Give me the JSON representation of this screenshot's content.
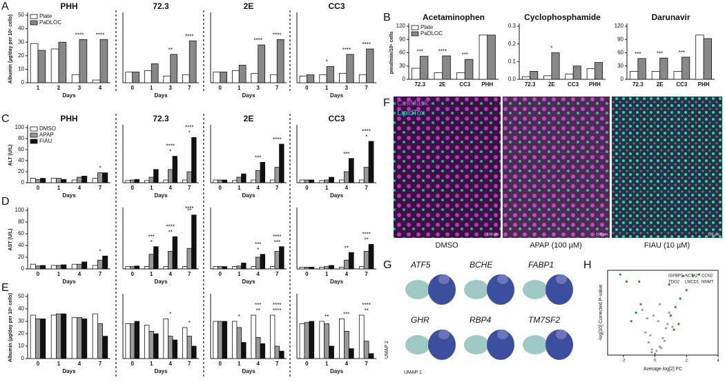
{
  "chart_data": [
    {
      "type": "bar",
      "panel": "A",
      "title": "PHH",
      "ylabel": "Albumin (µg/day per 10⁶ cells)",
      "xlabel": "Days",
      "legend": "upper left",
      "categories": [
        "1",
        "2",
        "3",
        "4"
      ],
      "ylim": [
        0,
        50
      ],
      "yticks": [
        0,
        10,
        20,
        30,
        40,
        50
      ],
      "series": [
        {
          "name": "Plate",
          "color": "#ffffff",
          "values": [
            29,
            25,
            6,
            2
          ]
        },
        {
          "name": "PaDLOC",
          "color": "#888888",
          "values": [
            24,
            30,
            32,
            32
          ]
        }
      ],
      "annotations": [
        {
          "category": "3",
          "text": "****"
        },
        {
          "category": "4",
          "text": "****"
        }
      ]
    },
    {
      "type": "bar",
      "title": "72.3",
      "xlabel": "Days",
      "categories": [
        "0",
        "1",
        "3",
        "7"
      ],
      "ylim": [
        0,
        50
      ],
      "series": [
        {
          "color": "#ffffff",
          "values": [
            8,
            9,
            5,
            6
          ]
        },
        {
          "color": "#888888",
          "values": [
            8,
            14,
            21,
            31
          ]
        }
      ],
      "annotations": [
        {
          "category": "3",
          "text": "**"
        },
        {
          "category": "7",
          "text": "****"
        }
      ]
    },
    {
      "type": "bar",
      "title": "2E",
      "xlabel": "Days",
      "categories": [
        "0",
        "1",
        "3",
        "7"
      ],
      "ylim": [
        0,
        50
      ],
      "series": [
        {
          "color": "#ffffff",
          "values": [
            8,
            9,
            7,
            6
          ]
        },
        {
          "color": "#888888",
          "values": [
            8,
            13,
            28,
            32
          ]
        }
      ],
      "annotations": [
        {
          "category": "3",
          "text": "****"
        },
        {
          "category": "7",
          "text": "****"
        }
      ]
    },
    {
      "type": "bar",
      "title": "CC3",
      "xlabel": "Days",
      "categories": [
        "0",
        "1",
        "3",
        "7"
      ],
      "ylim": [
        0,
        50
      ],
      "series": [
        {
          "color": "#ffffff",
          "values": [
            5,
            6,
            7,
            6
          ]
        },
        {
          "color": "#888888",
          "values": [
            6,
            12,
            21,
            25
          ]
        }
      ],
      "annotations": [
        {
          "category": "1",
          "text": "*"
        },
        {
          "category": "3",
          "text": "****"
        },
        {
          "category": "7",
          "text": "****"
        }
      ]
    },
    {
      "type": "bar",
      "panel": "B",
      "title": "Acetaminophen",
      "ylabel": "pmol/min/10⁶ cells",
      "legend": "upper left",
      "categories": [
        "72.3",
        "2E",
        "CC3",
        "PHH"
      ],
      "ylim": [
        0,
        120
      ],
      "yticks": [
        0,
        30,
        60,
        90,
        120
      ],
      "series": [
        {
          "name": "Plate",
          "color": "#ffffff",
          "values": [
            25,
            15,
            15,
            100
          ]
        },
        {
          "name": "PaDLOC",
          "color": "#888888",
          "values": [
            52,
            53,
            45,
            100
          ]
        }
      ],
      "annotations": [
        {
          "category": "72.3",
          "text": "***"
        },
        {
          "category": "2E",
          "text": "****"
        },
        {
          "category": "CC3",
          "text": "***"
        }
      ]
    },
    {
      "type": "bar",
      "title": "Cyclophosphamide",
      "categories": [
        "72.3",
        "2E",
        "CC3",
        "PHH"
      ],
      "ylim": [
        0,
        0.3
      ],
      "yticks": [
        {
          "value": 0,
          "label": "0.0"
        },
        0.1,
        0.2,
        0.3
      ],
      "series": [
        {
          "color": "#ffffff",
          "values": [
            0.015,
            0.02,
            0.03,
            0.06
          ]
        },
        {
          "color": "#888888",
          "values": [
            0.045,
            0.15,
            0.075,
            0.095
          ]
        }
      ],
      "annotations": [
        {
          "category": "2E",
          "text": "*"
        }
      ]
    },
    {
      "type": "bar",
      "title": "Darunavir",
      "categories": [
        "72.3",
        "2E",
        "CC3",
        "PHH"
      ],
      "ylim": [
        0,
        120
      ],
      "yticks": [
        0,
        30,
        60,
        90,
        120
      ],
      "series": [
        {
          "color": "#ffffff",
          "values": [
            18,
            18,
            18,
            100
          ]
        },
        {
          "color": "#888888",
          "values": [
            47,
            48,
            50,
            92
          ]
        }
      ],
      "annotations": [
        {
          "category": "72.3",
          "text": "***"
        },
        {
          "category": "2E",
          "text": "***"
        },
        {
          "category": "CC3",
          "text": "***"
        }
      ]
    },
    {
      "type": "bar",
      "panel": "C",
      "title": "PHH",
      "ylabel": "ALT (U/L)",
      "xlabel": "Days",
      "legend": "upper left",
      "categories": [
        "0",
        "1",
        "4",
        "7"
      ],
      "ylim": [
        0,
        100
      ],
      "yticks": [
        0,
        20,
        40,
        60,
        80,
        100
      ],
      "series": [
        {
          "name": "DMSO",
          "color": "#ffffff",
          "values": [
            8,
            8,
            5,
            8
          ]
        },
        {
          "name": "APAP",
          "color": "#999999",
          "values": [
            6,
            8,
            10,
            18
          ]
        },
        {
          "name": "FIAU",
          "color": "#111111",
          "values": [
            8,
            6,
            12,
            18
          ]
        }
      ],
      "annotations": [
        {
          "category": "7",
          "text": "*"
        }
      ]
    },
    {
      "type": "bar",
      "title": "72.3",
      "xlabel": "Days",
      "categories": [
        "0",
        "1",
        "4",
        "7"
      ],
      "ylim": [
        0,
        100
      ],
      "series": [
        {
          "color": "#ffffff",
          "values": [
            4,
            4,
            5,
            5
          ]
        },
        {
          "color": "#999999",
          "values": [
            5,
            10,
            24,
            20
          ]
        },
        {
          "color": "#111111",
          "values": [
            6,
            24,
            48,
            82
          ]
        }
      ],
      "annotations": [
        {
          "category": "4",
          "text": "*"
        },
        {
          "category": "4",
          "text": "****"
        },
        {
          "category": "7",
          "text": "*"
        },
        {
          "category": "7",
          "text": "****"
        }
      ]
    },
    {
      "type": "bar",
      "title": "2E",
      "xlabel": "Days",
      "categories": [
        "0",
        "1",
        "4",
        "7"
      ],
      "ylim": [
        0,
        100
      ],
      "series": [
        {
          "color": "#ffffff",
          "values": [
            5,
            4,
            5,
            5
          ]
        },
        {
          "color": "#999999",
          "values": [
            5,
            10,
            22,
            28
          ]
        },
        {
          "color": "#111111",
          "values": [
            5,
            16,
            37,
            70
          ]
        }
      ],
      "annotations": [
        {
          "category": "4",
          "text": "***"
        },
        {
          "category": "7",
          "text": "****"
        }
      ]
    },
    {
      "type": "bar",
      "title": "CC3",
      "xlabel": "Days",
      "categories": [
        "0",
        "1",
        "4",
        "7"
      ],
      "ylim": [
        0,
        100
      ],
      "series": [
        {
          "color": "#ffffff",
          "values": [
            5,
            4,
            5,
            5
          ]
        },
        {
          "color": "#999999",
          "values": [
            5,
            5,
            20,
            28
          ]
        },
        {
          "color": "#111111",
          "values": [
            5,
            10,
            44,
            75
          ]
        }
      ],
      "annotations": [
        {
          "category": "4",
          "text": "***"
        },
        {
          "category": "7",
          "text": "*"
        },
        {
          "category": "7",
          "text": "****"
        }
      ]
    },
    {
      "type": "bar",
      "panel": "D",
      "ylabel": "AST (U/L)",
      "xlabel": "Days",
      "categories": [
        "0",
        "1",
        "4",
        "7"
      ],
      "ylim": [
        0,
        100
      ],
      "yticks": [
        0,
        20,
        40,
        60,
        80,
        100
      ],
      "series": [
        {
          "color": "#ffffff",
          "values": [
            8,
            6,
            8,
            6
          ]
        },
        {
          "color": "#999999",
          "values": [
            5,
            6,
            8,
            15
          ]
        },
        {
          "color": "#111111",
          "values": [
            6,
            7,
            12,
            22
          ]
        }
      ],
      "annotations": [
        {
          "category": "7",
          "text": "*"
        }
      ]
    },
    {
      "type": "bar",
      "xlabel": "Days",
      "categories": [
        "0",
        "1",
        "4",
        "7"
      ],
      "ylim": [
        0,
        100
      ],
      "series": [
        {
          "color": "#ffffff",
          "values": [
            4,
            4,
            4,
            4
          ]
        },
        {
          "color": "#999999",
          "values": [
            4,
            25,
            30,
            35
          ]
        },
        {
          "color": "#111111",
          "values": [
            5,
            38,
            55,
            92
          ]
        }
      ],
      "annotations": [
        {
          "category": "1",
          "text": "*"
        },
        {
          "category": "1",
          "text": "***"
        },
        {
          "category": "4",
          "text": "**"
        },
        {
          "category": "4",
          "text": "****"
        },
        {
          "category": "7",
          "text": "**"
        },
        {
          "category": "7",
          "text": "****"
        }
      ]
    },
    {
      "type": "bar",
      "xlabel": "Days",
      "categories": [
        "0",
        "1",
        "4",
        "7"
      ],
      "ylim": [
        0,
        100
      ],
      "series": [
        {
          "color": "#ffffff",
          "values": [
            4,
            4,
            4,
            4
          ]
        },
        {
          "color": "#999999",
          "values": [
            4,
            5,
            20,
            30
          ]
        },
        {
          "color": "#111111",
          "values": [
            4,
            10,
            25,
            38
          ]
        }
      ],
      "annotations": [
        {
          "category": "4",
          "text": "*"
        },
        {
          "category": "4",
          "text": "***"
        },
        {
          "category": "7",
          "text": "***"
        },
        {
          "category": "7",
          "text": "****"
        }
      ]
    },
    {
      "type": "bar",
      "xlabel": "Days",
      "categories": [
        "0",
        "1",
        "4",
        "7"
      ],
      "ylim": [
        0,
        100
      ],
      "series": [
        {
          "color": "#ffffff",
          "values": [
            3,
            3,
            3,
            4
          ]
        },
        {
          "color": "#999999",
          "values": [
            3,
            4,
            15,
            30
          ]
        },
        {
          "color": "#111111",
          "values": [
            3,
            6,
            28,
            42
          ]
        }
      ],
      "annotations": [
        {
          "category": "4",
          "text": "**"
        },
        {
          "category": "7",
          "text": "**"
        },
        {
          "category": "7",
          "text": "****"
        }
      ]
    },
    {
      "type": "bar",
      "panel": "E",
      "ylabel": "Albumin (µg/day per 10⁶ cells)",
      "xlabel": "Days",
      "categories": [
        "0",
        "1",
        "4",
        "7"
      ],
      "ylim": [
        0,
        50
      ],
      "yticks": [
        0,
        10,
        20,
        30,
        40,
        50
      ],
      "series": [
        {
          "color": "#ffffff",
          "values": [
            35,
            35,
            33,
            36
          ]
        },
        {
          "color": "#999999",
          "values": [
            32,
            36,
            33,
            28
          ]
        },
        {
          "color": "#111111",
          "values": [
            32,
            36,
            32,
            18
          ]
        }
      ]
    },
    {
      "type": "bar",
      "xlabel": "Days",
      "categories": [
        "0",
        "1",
        "4",
        "7"
      ],
      "ylim": [
        0,
        50
      ],
      "series": [
        {
          "color": "#ffffff",
          "values": [
            28,
            27,
            32,
            25
          ]
        },
        {
          "color": "#999999",
          "values": [
            28,
            22,
            18,
            18
          ]
        },
        {
          "color": "#111111",
          "values": [
            30,
            20,
            15,
            10
          ]
        }
      ],
      "annotations": [
        {
          "category": "4",
          "text": "*"
        },
        {
          "category": "7",
          "text": "*"
        }
      ]
    },
    {
      "type": "bar",
      "xlabel": "Days",
      "categories": [
        "0",
        "1",
        "4",
        "7"
      ],
      "ylim": [
        0,
        50
      ],
      "series": [
        {
          "color": "#ffffff",
          "values": [
            30,
            30,
            35,
            35
          ]
        },
        {
          "color": "#999999",
          "values": [
            30,
            25,
            17,
            10
          ]
        },
        {
          "color": "#111111",
          "values": [
            30,
            13,
            12,
            6
          ]
        }
      ],
      "annotations": [
        {
          "category": "1",
          "text": "*"
        },
        {
          "category": "4",
          "text": "**"
        },
        {
          "category": "4",
          "text": "***"
        },
        {
          "category": "7",
          "text": "****"
        },
        {
          "category": "7",
          "text": "****"
        }
      ]
    },
    {
      "type": "bar",
      "xlabel": "Days",
      "categories": [
        "0",
        "1",
        "4",
        "7"
      ],
      "ylim": [
        0,
        50
      ],
      "series": [
        {
          "color": "#ffffff",
          "values": [
            28,
            30,
            32,
            35
          ]
        },
        {
          "color": "#999999",
          "values": [
            29,
            28,
            22,
            14
          ]
        },
        {
          "color": "#111111",
          "values": [
            30,
            10,
            8,
            4
          ]
        }
      ],
      "annotations": [
        {
          "category": "1",
          "text": "**"
        },
        {
          "category": "4",
          "text": "***"
        },
        {
          "category": "7",
          "text": "**"
        },
        {
          "category": "7",
          "text": "****"
        }
      ]
    },
    {
      "type": "scatter",
      "panel": "H",
      "xlabel": "Average log[2] FC",
      "ylabel": "-log[10] Corrected P-value",
      "xlim": [
        -3,
        4
      ],
      "ylim": [
        0,
        300
      ],
      "xticks": [
        -2,
        0,
        2,
        4
      ],
      "series": [
        {
          "color": "#9a9a9a",
          "x": [
            -0.2,
            0.1,
            0.3,
            -0.4,
            0.5,
            -0.6,
            0.7,
            0.2,
            -0.1,
            0.4,
            -0.3,
            0.8,
            0.0,
            0.6,
            -0.5,
            0.9,
            1.1,
            -0.8,
            0.3,
            -0.2
          ],
          "values": [
            10,
            15,
            30,
            45,
            60,
            80,
            95,
            120,
            140,
            25,
            70,
            110,
            5,
            50,
            130,
            150,
            100,
            160,
            180,
            20
          ]
        },
        {
          "color": "#2e8b2e",
          "x": [
            -1.5,
            -1.2,
            -0.9,
            1.0,
            1.3,
            1.6,
            2.0,
            -1.8,
            1.2,
            2.4,
            -1.0,
            0.9,
            1.8,
            -2.2,
            2.8,
            1.5
          ],
          "values": [
            120,
            150,
            180,
            140,
            170,
            200,
            230,
            260,
            90,
            280,
            260,
            250,
            280,
            285,
            285,
            110
          ]
        }
      ],
      "labels": [
        "IGFBP1",
        "ACTA2",
        "CCN2",
        "TDO2",
        "LMCD1",
        "NNMT"
      ]
    }
  ],
  "figure_panels": {
    "F": {
      "panel": "F",
      "legend": [
        "CellMask",
        "LipidTox"
      ],
      "captions": [
        "DMSO",
        "APAP (100 µM)",
        "FIAU (10 µM)"
      ],
      "scale_bars": [
        "100 µm",
        "100 µm",
        "100 µm"
      ]
    },
    "G": {
      "panel": "G",
      "genes": [
        "ATF5",
        "BCHE",
        "FABP1",
        "GHR",
        "RBP4",
        "TM7SF2"
      ],
      "axis_labels": [
        "UMAP 1",
        "UMAP 2"
      ]
    }
  }
}
